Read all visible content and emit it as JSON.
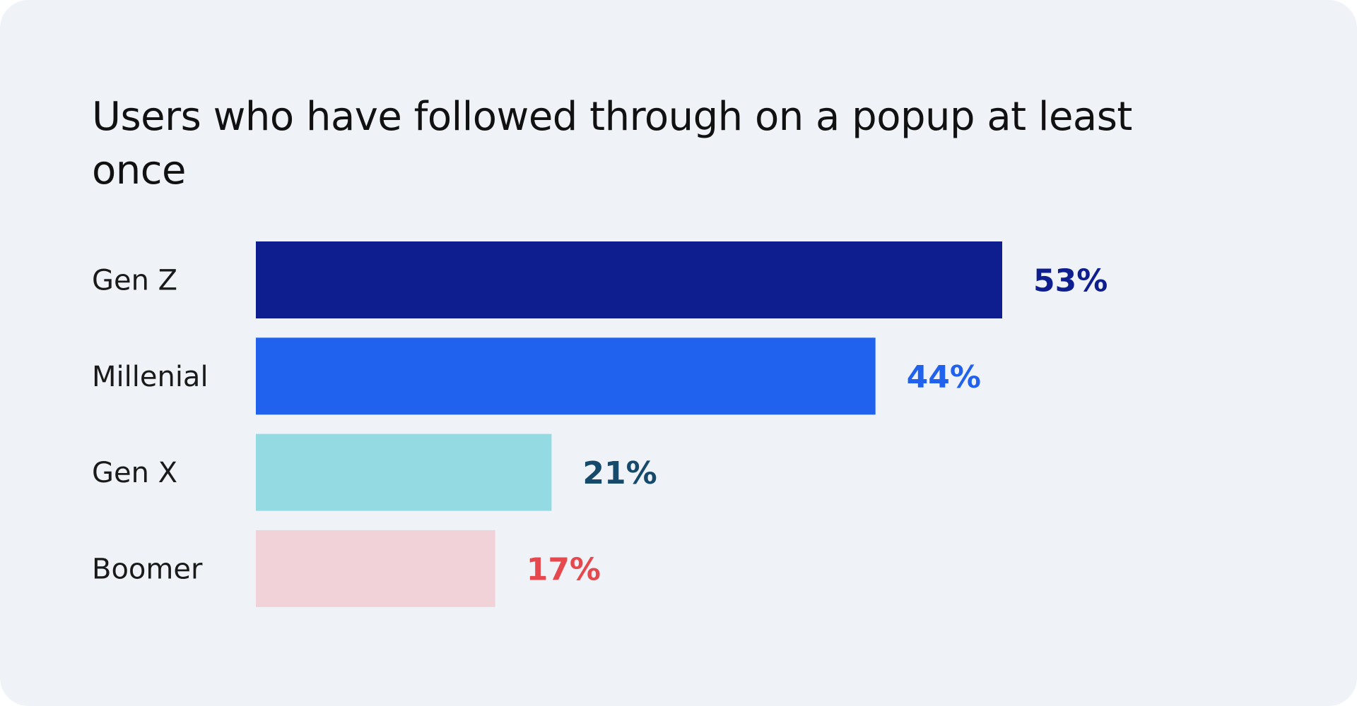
{
  "chart_data": {
    "type": "bar",
    "orientation": "horizontal",
    "title": "Users who have followed through on a popup at least once",
    "categories": [
      "Gen Z",
      "Millenial",
      "Gen X",
      "Boomer"
    ],
    "values": [
      53,
      44,
      21,
      17
    ],
    "value_labels": [
      "53%",
      "44%",
      "21%",
      "17%"
    ],
    "unit": "%",
    "bar_colors": [
      "#0f1e8f",
      "#2062ee",
      "#94dae3",
      "#f1d2d8"
    ],
    "label_colors": [
      "#0f1e8f",
      "#2062ee",
      "#164a6b",
      "#e5484d"
    ],
    "xlim": [
      0,
      53
    ],
    "grid": false,
    "axes_visible": false,
    "legend": "none"
  },
  "background": "#eff3f8"
}
